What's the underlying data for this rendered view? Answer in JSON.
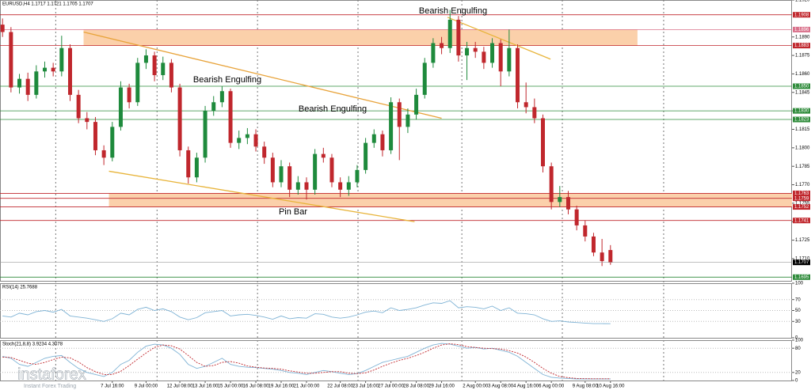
{
  "chart_data": [
    {
      "type": "candlestick",
      "title": "EURUSD,H4  1.1717 1.1721 1.1705 1.1707",
      "open": [
        1.19,
        1.1894,
        1.1849,
        1.1856,
        1.1843,
        1.1862,
        1.1865,
        1.1862,
        1.1881,
        1.1843,
        1.1824,
        1.1821,
        1.1798,
        1.1792,
        1.1817,
        1.1849,
        1.1837,
        1.1869,
        1.1875,
        1.1859,
        1.1869,
        1.1849,
        1.1798,
        1.1776,
        1.1792,
        1.183,
        1.1837,
        1.1846,
        1.1804,
        1.1808,
        1.1811,
        1.1801,
        1.1792,
        1.1772,
        1.1785,
        1.1766,
        1.1772,
        1.1766,
        1.1795,
        1.1792,
        1.1772,
        1.1766,
        1.1772,
        1.1782,
        1.1804,
        1.1811,
        1.1798,
        1.1837,
        1.1817,
        1.1827,
        1.1843,
        1.1869,
        1.1885,
        1.1881,
        1.1904,
        1.1875,
        1.1881,
        1.1878,
        1.1869,
        1.1885,
        1.1862,
        1.1881,
        1.1837,
        1.1833,
        1.1824,
        1.1785,
        1.1756,
        1.176,
        1.175,
        1.1737,
        1.1728,
        1.1715,
        1.1717
      ],
      "high": [
        1.1905,
        1.1898,
        1.186,
        1.1861,
        1.1867,
        1.187,
        1.1869,
        1.1891,
        1.1884,
        1.1847,
        1.1829,
        1.1825,
        1.1802,
        1.1821,
        1.1854,
        1.1852,
        1.1873,
        1.188,
        1.1878,
        1.1874,
        1.1872,
        1.1852,
        1.1801,
        1.1796,
        1.1834,
        1.1842,
        1.185,
        1.1848,
        1.1814,
        1.1816,
        1.1815,
        1.1805,
        1.1796,
        1.179,
        1.1788,
        1.1777,
        1.1776,
        1.1799,
        1.18,
        1.1795,
        1.1776,
        1.1777,
        1.1786,
        1.1808,
        1.1815,
        1.1814,
        1.1841,
        1.184,
        1.1832,
        1.1848,
        1.1873,
        1.1889,
        1.189,
        1.1912,
        1.1907,
        1.1886,
        1.1886,
        1.1882,
        1.1889,
        1.1888,
        1.1896,
        1.1884,
        1.1853,
        1.184,
        1.1827,
        1.1788,
        1.1769,
        1.1765,
        1.1753,
        1.1741,
        1.1731,
        1.1726,
        1.1721
      ],
      "low": [
        1.189,
        1.1845,
        1.1844,
        1.1838,
        1.184,
        1.1857,
        1.1858,
        1.1858,
        1.1838,
        1.182,
        1.1815,
        1.1794,
        1.1786,
        1.1789,
        1.1814,
        1.1832,
        1.1834,
        1.1864,
        1.1854,
        1.1855,
        1.1845,
        1.1793,
        1.1771,
        1.1772,
        1.1788,
        1.1826,
        1.1833,
        1.18,
        1.1799,
        1.1803,
        1.1797,
        1.1787,
        1.1768,
        1.1768,
        1.176,
        1.1762,
        1.1758,
        1.1762,
        1.1788,
        1.1768,
        1.176,
        1.1761,
        1.1768,
        1.1779,
        1.18,
        1.1793,
        1.1795,
        1.179,
        1.1812,
        1.1823,
        1.184,
        1.1865,
        1.1876,
        1.1877,
        1.187,
        1.1855,
        1.1873,
        1.1864,
        1.1865,
        1.185,
        1.1858,
        1.1832,
        1.1828,
        1.182,
        1.178,
        1.175,
        1.1752,
        1.1746,
        1.1733,
        1.1724,
        1.1712,
        1.1704,
        1.1705
      ],
      "close": [
        1.1894,
        1.1849,
        1.1856,
        1.1843,
        1.1862,
        1.1865,
        1.1862,
        1.1881,
        1.1843,
        1.1824,
        1.1821,
        1.1798,
        1.1792,
        1.1817,
        1.1849,
        1.1837,
        1.1869,
        1.1875,
        1.1859,
        1.1869,
        1.1849,
        1.1798,
        1.1776,
        1.1792,
        1.183,
        1.1837,
        1.1846,
        1.1804,
        1.1808,
        1.1811,
        1.1801,
        1.1792,
        1.1772,
        1.1785,
        1.1766,
        1.1772,
        1.1766,
        1.1795,
        1.1792,
        1.1772,
        1.1766,
        1.1772,
        1.1782,
        1.1804,
        1.1811,
        1.1798,
        1.1837,
        1.1817,
        1.1827,
        1.1843,
        1.1869,
        1.1885,
        1.1881,
        1.1904,
        1.1875,
        1.1881,
        1.1878,
        1.1869,
        1.1885,
        1.1862,
        1.1881,
        1.1837,
        1.1833,
        1.1824,
        1.1785,
        1.1756,
        1.176,
        1.175,
        1.1737,
        1.1728,
        1.1715,
        1.1708,
        1.1707
      ],
      "up_color": "#1e8a3c",
      "down_color": "#c0272d",
      "xlim": [
        -0.3,
        93.5
      ],
      "xticks": [
        {
          "value": 13,
          "label": "7 Jul 16:00"
        },
        {
          "value": 17,
          "label": "9 Jul 00:00"
        },
        {
          "value": 21,
          "label": "12 Jul 08:00"
        },
        {
          "value": 24,
          "label": "13 Jul 16:00"
        },
        {
          "value": 27,
          "label": "15 Jul 00:00"
        },
        {
          "value": 30,
          "label": "16 Jul 08:00"
        },
        {
          "value": 33,
          "label": "19 Jul 16:00"
        },
        {
          "value": 36,
          "label": "21 Jul 00:00"
        },
        {
          "value": 40,
          "label": "22 Jul 08:00"
        },
        {
          "value": 43,
          "label": "23 Jul 16:00"
        },
        {
          "value": 46,
          "label": "27 Jul 00:00"
        },
        {
          "value": 49,
          "label": "28 Jul 08:00"
        },
        {
          "value": 52,
          "label": "29 Jul 16:00"
        },
        {
          "value": 56,
          "label": "2 Aug 00:00"
        },
        {
          "value": 59,
          "label": "3 Aug 08:00"
        },
        {
          "value": 62,
          "label": "4 Aug 16:00"
        },
        {
          "value": 65,
          "label": "6 Aug 00:00"
        },
        {
          "value": 69,
          "label": "9 Aug 08:00"
        },
        {
          "value": 72,
          "label": "10 Aug 16:00"
        }
      ],
      "vgrid": [
        6.3,
        18.3,
        30.2,
        42.1,
        54.4,
        66.3,
        78.3
      ],
      "ylim": [
        1.1692,
        1.192
      ],
      "yticks": [
        {
          "value": 1.192,
          "label": "1.1920"
        },
        {
          "value": 1.189,
          "label": "1.1890"
        },
        1.1875,
        {
          "value": 1.186,
          "label": "1.1860"
        },
        1.1845,
        {
          "value": 1.183,
          "label": "1.1830"
        },
        1.1815,
        {
          "value": 1.18,
          "label": "1.1800"
        },
        1.1785,
        {
          "value": 1.177,
          "label": "1.1770"
        },
        1.1755,
        {
          "value": 1.174,
          "label": "1.1740"
        },
        1.1725,
        {
          "value": 1.171,
          "label": "1.1710"
        }
      ],
      "levels": [
        {
          "value": 1.1908,
          "color": "#c0272d"
        },
        {
          "value": 1.1896,
          "color": "#d9708a"
        },
        {
          "value": 1.1883,
          "color": "#c0272d"
        },
        {
          "value": 1.185,
          "label": "1.1850",
          "color": "#2e8b3a"
        },
        {
          "value": 1.183,
          "label": "1.1830",
          "color": "#2e8b3a"
        },
        {
          "value": 1.1823,
          "color": "#2e8b3a"
        },
        {
          "value": 1.1763,
          "color": "#c0272d"
        },
        {
          "value": 1.1759,
          "color": "#c0272d"
        },
        {
          "value": 1.1752,
          "color": "#c0272d"
        },
        {
          "value": 1.1741,
          "color": "#c0272d"
        },
        {
          "value": 1.1695,
          "color": "#2e8b3a"
        }
      ],
      "zones": [
        {
          "from": 1.1896,
          "to": 1.1883,
          "start": 9.6,
          "end": 75.2,
          "color": "#fbd0aa"
        },
        {
          "from": 1.1763,
          "to": 1.1752,
          "start": 12.6,
          "end": 93.5,
          "color": "#fbd0aa"
        }
      ],
      "trendlines": [
        {
          "start": [
            9.6,
            1.1894
          ],
          "end": [
            52,
            1.1824
          ],
          "color": "#e8a33a"
        },
        {
          "start": [
            12.6,
            1.1781
          ],
          "end": [
            48.8,
            1.174
          ],
          "color": "#e8b43a"
        },
        {
          "start": [
            52.7,
            1.1906
          ],
          "end": [
            64.9,
            1.1872
          ],
          "color": "#e8b43a"
        }
      ],
      "annotations": [
        "Bearish Engulfing",
        "Bearish Engulfing",
        "Bearish Engulfing",
        "Pin Bar"
      ],
      "logo": "instaforex",
      "tagline": "Instant Forex Trading"
    },
    {
      "type": "line",
      "title": "RSI(14) 25.7688",
      "series": [
        {
          "color": "#7fb3d5",
          "values": [
            40,
            38,
            45,
            42,
            48,
            50,
            47,
            52,
            40,
            38,
            36,
            33,
            30,
            35,
            45,
            42,
            52,
            56,
            50,
            53,
            48,
            38,
            33,
            37,
            46,
            48,
            50,
            40,
            42,
            43,
            41,
            38,
            34,
            40,
            35,
            37,
            36,
            44,
            43,
            38,
            36,
            38,
            42,
            47,
            49,
            46,
            55,
            50,
            52,
            55,
            60,
            64,
            63,
            68,
            55,
            57,
            56,
            53,
            58,
            50,
            55,
            45,
            44,
            42,
            35,
            30,
            31,
            29,
            28,
            27,
            26,
            26,
            25.7688
          ]
        }
      ],
      "ylim": [
        0,
        100
      ],
      "yticks": [
        100,
        70,
        50,
        30,
        0
      ]
    },
    {
      "type": "line",
      "title": "Stoch(21,8,8) 3.9234 4.3078",
      "series": [
        {
          "color": "#7fb3d5",
          "values": [
            60,
            55,
            40,
            35,
            45,
            55,
            60,
            62,
            45,
            30,
            20,
            15,
            10,
            20,
            40,
            50,
            70,
            85,
            90,
            88,
            80,
            65,
            40,
            30,
            35,
            45,
            55,
            40,
            35,
            33,
            32,
            30,
            28,
            25,
            20,
            18,
            15,
            20,
            25,
            22,
            18,
            15,
            17,
            25,
            35,
            45,
            50,
            55,
            60,
            70,
            80,
            88,
            92,
            90,
            85,
            80,
            82,
            78,
            80,
            75,
            70,
            60,
            45,
            30,
            15,
            8,
            6,
            5,
            4,
            4,
            4,
            4,
            3.9234
          ]
        },
        {
          "color": "#c0272d",
          "dashed": true,
          "values": [
            58,
            57,
            50,
            43,
            40,
            45,
            52,
            58,
            56,
            46,
            32,
            22,
            15,
            15,
            23,
            37,
            53,
            68,
            82,
            88,
            86,
            78,
            62,
            45,
            35,
            37,
            45,
            47,
            43,
            36,
            33,
            31,
            30,
            28,
            24,
            21,
            18,
            18,
            20,
            22,
            22,
            18,
            17,
            19,
            26,
            35,
            43,
            50,
            55,
            62,
            70,
            80,
            88,
            91,
            89,
            84,
            82,
            80,
            79,
            78,
            74,
            68,
            58,
            45,
            30,
            18,
            10,
            7,
            5,
            4.5,
            4.3,
            4.3,
            4.3078
          ]
        }
      ],
      "ylim": [
        0,
        100
      ],
      "yticks": [
        100,
        80,
        20,
        0
      ]
    }
  ]
}
